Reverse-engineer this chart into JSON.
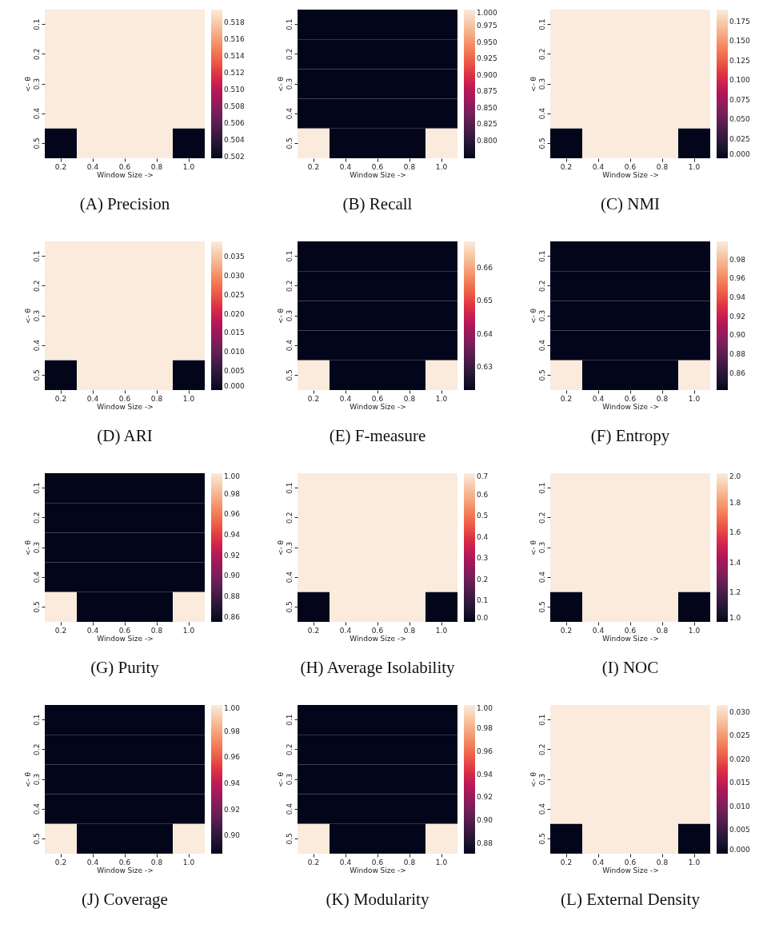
{
  "chart_data": [
    {
      "type": "heatmap",
      "title": "(A) Precision",
      "xlabel": "Window Size ->",
      "ylabel": "<- θ",
      "categories": [
        "0.2",
        "0.4",
        "0.6",
        "0.8",
        "1.0"
      ],
      "y_categories": [
        "0.1",
        "0.2",
        "0.3",
        "0.4",
        "0.5"
      ],
      "cells": [
        [
          0.5195,
          0.5195,
          0.5195,
          0.5195,
          0.5195
        ],
        [
          0.5195,
          0.5195,
          0.5195,
          0.5195,
          0.5195
        ],
        [
          0.5195,
          0.5195,
          0.5195,
          0.5195,
          0.5195
        ],
        [
          0.5195,
          0.5195,
          0.5195,
          0.5195,
          0.5195
        ],
        [
          0.5018,
          0.5195,
          0.5195,
          0.5195,
          0.5018
        ]
      ],
      "clim": [
        0.5018,
        0.5195
      ],
      "cticks": [
        0.502,
        0.504,
        0.506,
        0.508,
        {
          "value": 0.51,
          "label": "0.510"
        },
        0.512,
        0.514,
        0.516,
        0.518
      ]
    },
    {
      "type": "heatmap",
      "title": "(B) Recall",
      "xlabel": "Window Size ->",
      "ylabel": "<- θ",
      "categories": [
        "0.2",
        "0.4",
        "0.6",
        "0.8",
        "1.0"
      ],
      "y_categories": [
        "0.1",
        "0.2",
        "0.3",
        "0.4",
        "0.5"
      ],
      "cells": [
        [
          0.773,
          0.773,
          0.773,
          0.773,
          0.773
        ],
        [
          0.773,
          0.773,
          0.773,
          0.773,
          0.773
        ],
        [
          0.773,
          0.773,
          0.773,
          0.773,
          0.773
        ],
        [
          0.773,
          0.773,
          0.773,
          0.773,
          0.773
        ],
        [
          1,
          0.773,
          0.773,
          0.773,
          1
        ]
      ],
      "clim": [
        0.773,
        1
      ],
      "cticks": [
        {
          "value": 0.8,
          "label": "0.800"
        },
        0.825,
        {
          "value": 0.85,
          "label": "0.850"
        },
        0.875,
        {
          "value": 0.9,
          "label": "0.900"
        },
        0.925,
        {
          "value": 0.95,
          "label": "0.950"
        },
        0.975,
        {
          "value": 1,
          "label": "1.000"
        }
      ]
    },
    {
      "type": "heatmap",
      "title": "(C) NMI",
      "xlabel": "Window Size ->",
      "ylabel": "<- θ",
      "categories": [
        "0.2",
        "0.4",
        "0.6",
        "0.8",
        "1.0"
      ],
      "y_categories": [
        "0.1",
        "0.2",
        "0.3",
        "0.4",
        "0.5"
      ],
      "cells": [
        [
          0.19,
          0.19,
          0.19,
          0.19,
          0.19
        ],
        [
          0.19,
          0.19,
          0.19,
          0.19,
          0.19
        ],
        [
          0.19,
          0.19,
          0.19,
          0.19,
          0.19
        ],
        [
          0.19,
          0.19,
          0.19,
          0.19,
          0.19
        ],
        [
          0,
          0.19,
          0.19,
          0.19,
          0
        ]
      ],
      "clim": [
        0,
        0.19
      ],
      "cticks": [
        {
          "value": 0,
          "label": "0.000"
        },
        0.025,
        {
          "value": 0.05,
          "label": "0.050"
        },
        0.075,
        {
          "value": 0.1,
          "label": "0.100"
        },
        0.125,
        {
          "value": 0.15,
          "label": "0.150"
        },
        0.175
      ]
    },
    {
      "type": "heatmap",
      "title": "(D) ARI",
      "xlabel": "Window Size ->",
      "ylabel": "<- θ",
      "categories": [
        "0.2",
        "0.4",
        "0.6",
        "0.8",
        "1.0"
      ],
      "y_categories": [
        "0.1",
        "0.2",
        "0.3",
        "0.4",
        "0.5"
      ],
      "cells": [
        [
          0.039,
          0.039,
          0.039,
          0.039,
          0.039
        ],
        [
          0.039,
          0.039,
          0.039,
          0.039,
          0.039
        ],
        [
          0.039,
          0.039,
          0.039,
          0.039,
          0.039
        ],
        [
          0.039,
          0.039,
          0.039,
          0.039,
          0.039
        ],
        [
          0,
          0.039,
          0.039,
          0.039,
          0
        ]
      ],
      "clim": [
        0,
        0.039
      ],
      "cticks": [
        {
          "value": 0,
          "label": "0.000"
        },
        0.005,
        {
          "value": 0.01,
          "label": "0.010"
        },
        0.015,
        {
          "value": 0.02,
          "label": "0.020"
        },
        0.025,
        {
          "value": 0.03,
          "label": "0.030"
        },
        0.035
      ]
    },
    {
      "type": "heatmap",
      "title": "(E) F-measure",
      "xlabel": "Window Size ->",
      "ylabel": "<- θ",
      "categories": [
        "0.2",
        "0.4",
        "0.6",
        "0.8",
        "1.0"
      ],
      "y_categories": [
        "0.1",
        "0.2",
        "0.3",
        "0.4",
        "0.5"
      ],
      "cells": [
        [
          0.623,
          0.623,
          0.623,
          0.623,
          0.623
        ],
        [
          0.623,
          0.623,
          0.623,
          0.623,
          0.623
        ],
        [
          0.623,
          0.623,
          0.623,
          0.623,
          0.623
        ],
        [
          0.623,
          0.623,
          0.623,
          0.623,
          0.623
        ],
        [
          0.668,
          0.623,
          0.623,
          0.623,
          0.668
        ]
      ],
      "clim": [
        0.623,
        0.668
      ],
      "cticks": [
        0.63,
        0.64,
        0.65,
        0.66
      ]
    },
    {
      "type": "heatmap",
      "title": "(F) Entropy",
      "xlabel": "Window Size ->",
      "ylabel": "<- θ",
      "categories": [
        "0.2",
        "0.4",
        "0.6",
        "0.8",
        "1.0"
      ],
      "y_categories": [
        "0.1",
        "0.2",
        "0.3",
        "0.4",
        "0.5"
      ],
      "cells": [
        [
          0.842,
          0.842,
          0.842,
          0.842,
          0.842
        ],
        [
          0.842,
          0.842,
          0.842,
          0.842,
          0.842
        ],
        [
          0.842,
          0.842,
          0.842,
          0.842,
          0.842
        ],
        [
          0.842,
          0.842,
          0.842,
          0.842,
          0.842
        ],
        [
          0.999,
          0.842,
          0.842,
          0.842,
          0.999
        ]
      ],
      "clim": [
        0.842,
        0.999
      ],
      "cticks": [
        0.86,
        0.88,
        {
          "value": 0.9,
          "label": "0.90"
        },
        0.92,
        0.94,
        0.96,
        0.98
      ]
    },
    {
      "type": "heatmap",
      "title": "(G) Purity",
      "xlabel": "Window Size ->",
      "ylabel": "<- θ",
      "categories": [
        "0.2",
        "0.4",
        "0.6",
        "0.8",
        "1.0"
      ],
      "y_categories": [
        "0.1",
        "0.2",
        "0.3",
        "0.4",
        "0.5"
      ],
      "cells": [
        [
          0.855,
          0.855,
          0.855,
          0.855,
          0.855
        ],
        [
          0.855,
          0.855,
          0.855,
          0.855,
          0.855
        ],
        [
          0.855,
          0.855,
          0.855,
          0.855,
          0.855
        ],
        [
          0.855,
          0.855,
          0.855,
          0.855,
          0.855
        ],
        [
          1,
          0.855,
          0.855,
          0.855,
          1
        ]
      ],
      "clim": [
        0.855,
        1
      ],
      "cticks": [
        0.86,
        0.88,
        {
          "value": 0.9,
          "label": "0.90"
        },
        0.92,
        0.94,
        0.96,
        0.98,
        {
          "value": 1,
          "label": "1.00"
        }
      ]
    },
    {
      "type": "heatmap",
      "title": "(H) Average Isolability",
      "xlabel": "Window Size ->",
      "ylabel": "<- θ",
      "categories": [
        "0.2",
        "0.4",
        "0.6",
        "0.8",
        "1.0"
      ],
      "y_categories": [
        "0.1",
        "0.2",
        "0.3",
        "0.4",
        "0.5"
      ],
      "cells": [
        [
          0.7,
          0.7,
          0.7,
          0.7,
          0.7
        ],
        [
          0.7,
          0.7,
          0.7,
          0.7,
          0.7
        ],
        [
          0.7,
          0.7,
          0.7,
          0.7,
          0.7
        ],
        [
          0.7,
          0.7,
          0.7,
          0.7,
          0.7
        ],
        [
          0,
          0.7,
          0.7,
          0.7,
          0
        ]
      ],
      "clim": [
        0,
        0.7
      ],
      "cticks": [
        {
          "value": 0,
          "label": "0.0"
        },
        0.1,
        0.2,
        0.3,
        0.4,
        0.5,
        0.6,
        0.7
      ]
    },
    {
      "type": "heatmap",
      "title": "(I) NOC",
      "xlabel": "Window Size ->",
      "ylabel": "<- θ",
      "categories": [
        "0.2",
        "0.4",
        "0.6",
        "0.8",
        "1.0"
      ],
      "y_categories": [
        "0.1",
        "0.2",
        "0.3",
        "0.4",
        "0.5"
      ],
      "cells": [
        [
          2,
          2,
          2,
          2,
          2
        ],
        [
          2,
          2,
          2,
          2,
          2
        ],
        [
          2,
          2,
          2,
          2,
          2
        ],
        [
          2,
          2,
          2,
          2,
          2
        ],
        [
          1,
          2,
          2,
          2,
          1
        ]
      ],
      "clim": [
        1,
        2
      ],
      "cticks": [
        {
          "value": 1,
          "label": "1.0"
        },
        1.2,
        1.4,
        1.6,
        1.8,
        {
          "value": 2,
          "label": "2.0"
        }
      ]
    },
    {
      "type": "heatmap",
      "title": "(J) Coverage",
      "xlabel": "Window Size ->",
      "ylabel": "<- θ",
      "categories": [
        "0.2",
        "0.4",
        "0.6",
        "0.8",
        "1.0"
      ],
      "y_categories": [
        "0.1",
        "0.2",
        "0.3",
        "0.4",
        "0.5"
      ],
      "cells": [
        [
          0.886,
          0.886,
          0.886,
          0.886,
          0.886
        ],
        [
          0.886,
          0.886,
          0.886,
          0.886,
          0.886
        ],
        [
          0.886,
          0.886,
          0.886,
          0.886,
          0.886
        ],
        [
          0.886,
          0.886,
          0.886,
          0.886,
          0.886
        ],
        [
          1,
          0.886,
          0.886,
          0.886,
          1
        ]
      ],
      "clim": [
        0.886,
        1
      ],
      "cticks": [
        {
          "value": 0.9,
          "label": "0.90"
        },
        0.92,
        0.94,
        0.96,
        0.98,
        {
          "value": 1,
          "label": "1.00"
        }
      ]
    },
    {
      "type": "heatmap",
      "title": "(K) Modularity",
      "xlabel": "Window Size ->",
      "ylabel": "<- θ",
      "categories": [
        "0.2",
        "0.4",
        "0.6",
        "0.8",
        "1.0"
      ],
      "y_categories": [
        "0.1",
        "0.2",
        "0.3",
        "0.4",
        "0.5"
      ],
      "cells": [
        [
          0.871,
          0.871,
          0.871,
          0.871,
          0.871
        ],
        [
          0.871,
          0.871,
          0.871,
          0.871,
          0.871
        ],
        [
          0.871,
          0.871,
          0.871,
          0.871,
          0.871
        ],
        [
          0.871,
          0.871,
          0.871,
          0.871,
          0.871
        ],
        [
          1,
          0.871,
          0.871,
          0.871,
          1
        ]
      ],
      "clim": [
        0.871,
        1
      ],
      "cticks": [
        0.88,
        {
          "value": 0.9,
          "label": "0.90"
        },
        0.92,
        0.94,
        0.96,
        0.98,
        {
          "value": 1,
          "label": "1.00"
        }
      ]
    },
    {
      "type": "heatmap",
      "title": "(L) External Density",
      "xlabel": "Window Size ->",
      "ylabel": "<- θ",
      "categories": [
        "0.2",
        "0.4",
        "0.6",
        "0.8",
        "1.0"
      ],
      "y_categories": [
        "0.1",
        "0.2",
        "0.3",
        "0.4",
        "0.5"
      ],
      "cells": [
        [
          0.0315,
          0.0315,
          0.0315,
          0.0315,
          0.0315
        ],
        [
          0.0315,
          0.0315,
          0.0315,
          0.0315,
          0.0315
        ],
        [
          0.0315,
          0.0315,
          0.0315,
          0.0315,
          0.0315
        ],
        [
          0.0315,
          0.0315,
          0.0315,
          0.0315,
          0.0315
        ],
        [
          0,
          0.0315,
          0.0315,
          0.0315,
          0
        ]
      ],
      "clim": [
        0,
        0.0315
      ],
      "cticks": [
        {
          "value": 0,
          "label": "0.000"
        },
        0.005,
        {
          "value": 0.01,
          "label": "0.010"
        },
        0.015,
        {
          "value": 0.02,
          "label": "0.020"
        },
        0.025,
        {
          "value": 0.03,
          "label": "0.030"
        }
      ]
    }
  ]
}
